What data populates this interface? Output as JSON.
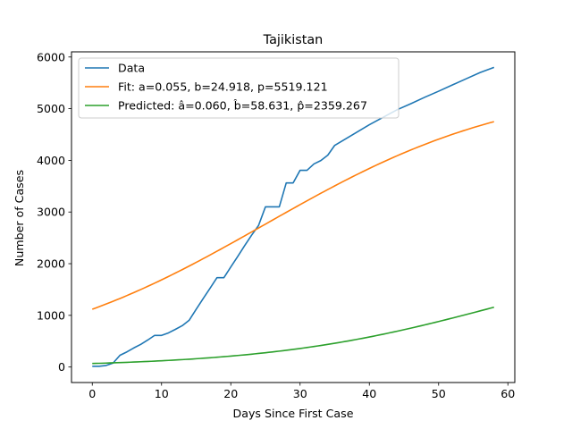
{
  "chart_data": {
    "type": "line",
    "title": "Tajikistan",
    "xlabel": "Days Since First Case",
    "ylabel": "Number of Cases",
    "xlim": [
      -3,
      61
    ],
    "ylim": [
      -300,
      6100
    ],
    "xticks": [
      0,
      10,
      20,
      30,
      40,
      50,
      60
    ],
    "yticks": [
      0,
      1000,
      2000,
      3000,
      4000,
      5000,
      6000
    ],
    "grid": false,
    "legend_position": "top-left",
    "series": [
      {
        "name": "Data",
        "color": "#1f77b4",
        "x": [
          0,
          1,
          2,
          3,
          4,
          5,
          6,
          7,
          8,
          9,
          10,
          11,
          12,
          13,
          14,
          15,
          16,
          17,
          18,
          19,
          20,
          21,
          22,
          23,
          24,
          25,
          26,
          27,
          28,
          29,
          30,
          31,
          32,
          33,
          34,
          35,
          36,
          38,
          40,
          42,
          44,
          46,
          48,
          50,
          52,
          54,
          56,
          58
        ],
        "y": [
          15,
          15,
          30,
          76,
          228,
          293,
          370,
          439,
          522,
          612,
          612,
          661,
          729,
          801,
          907,
          1118,
          1322,
          1524,
          1729,
          1729,
          1936,
          2140,
          2350,
          2551,
          2738,
          3100,
          3100,
          3100,
          3563,
          3563,
          3807,
          3807,
          3930,
          3996,
          4100,
          4290,
          4370,
          4529,
          4690,
          4834,
          4979,
          5097,
          5221,
          5338,
          5460,
          5580,
          5700,
          5799
        ]
      },
      {
        "name": "Fit: a=0.055, b=24.918, p=5519.121",
        "color": "#ff7f0e",
        "curve": "logistic",
        "params": {
          "a": 0.055,
          "b": 24.918,
          "p": 5519.121
        }
      },
      {
        "name": "Predicted: â=0.060, b̂=58.631, p̂=2359.267",
        "color": "#2ca02c",
        "curve": "logistic",
        "params": {
          "a": 0.06,
          "b": 58.631,
          "p": 2359.267
        }
      }
    ]
  }
}
